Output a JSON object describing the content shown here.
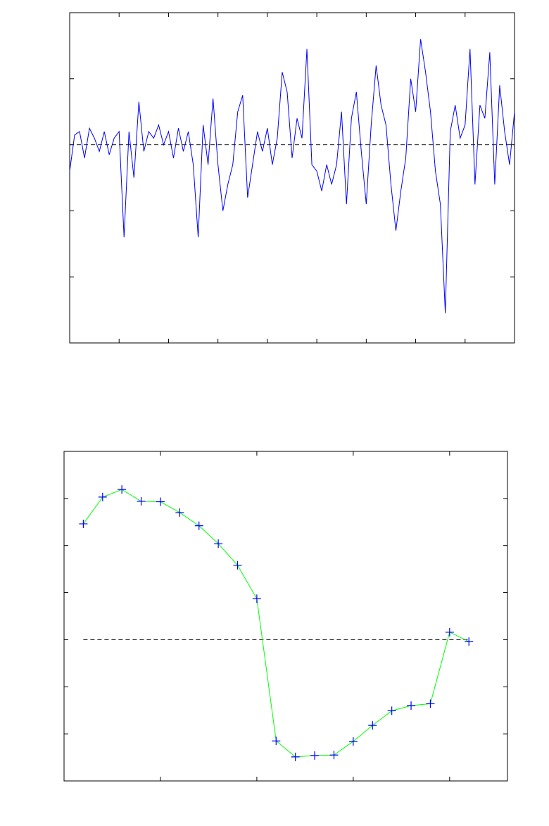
{
  "chart_data": [
    {
      "type": "line",
      "x": [
        0,
        10,
        20,
        30,
        40,
        50,
        60,
        70,
        80,
        90,
        100,
        110,
        120,
        130,
        140,
        150,
        160,
        170,
        180,
        190,
        200,
        210,
        220,
        230,
        240,
        250,
        260,
        270,
        280,
        290,
        300,
        310,
        320,
        330,
        340,
        350,
        360,
        370,
        380,
        390,
        400,
        410,
        420,
        430,
        440,
        450,
        460,
        470,
        480,
        490,
        500,
        510,
        520,
        530,
        540,
        550,
        560,
        570,
        580,
        590,
        600,
        610,
        620,
        630,
        640,
        650,
        660,
        670,
        680,
        690,
        700,
        710,
        720,
        730,
        740,
        750,
        760,
        770,
        780,
        790,
        800,
        810,
        820,
        830,
        840,
        850,
        860,
        870,
        880,
        890,
        900
      ],
      "series": [
        {
          "color": "#0000ff",
          "values": [
            -0.4,
            0.15,
            0.2,
            -0.2,
            0.25,
            0.1,
            -0.1,
            0.2,
            -0.15,
            0.1,
            0.2,
            -1.4,
            0.2,
            -0.5,
            0.65,
            -0.1,
            0.2,
            0.1,
            0.3,
            0.0,
            0.2,
            -0.2,
            0.25,
            -0.1,
            0.2,
            -0.3,
            -1.4,
            0.3,
            -0.3,
            0.7,
            -0.3,
            -1.0,
            -0.6,
            -0.3,
            0.5,
            0.75,
            -0.8,
            -0.3,
            0.2,
            -0.1,
            0.25,
            -0.3,
            0.1,
            1.1,
            0.8,
            -0.2,
            0.4,
            0.1,
            1.45,
            -0.3,
            -0.4,
            -0.7,
            -0.3,
            -0.6,
            -0.3,
            0.5,
            -0.9,
            0.4,
            0.8,
            -0.1,
            -0.9,
            0.3,
            1.2,
            0.6,
            0.3,
            -0.6,
            -1.3,
            -0.7,
            -0.2,
            1.0,
            0.5,
            1.6,
            1.1,
            0.5,
            -0.4,
            -0.9,
            -2.55,
            0.2,
            0.6,
            0.1,
            0.3,
            1.45,
            -0.6,
            0.6,
            0.4,
            1.4,
            -0.6,
            0.9,
            0.2,
            -0.3,
            0.5
          ]
        }
      ],
      "hline": 0,
      "xlim": [
        0,
        900
      ],
      "xticks": [
        100,
        200,
        300,
        400,
        500,
        600,
        700,
        800
      ],
      "ylim": [
        -3,
        2
      ],
      "yticks": [
        -2,
        -1,
        0,
        1
      ]
    },
    {
      "type": "line",
      "x": [
        1,
        2,
        3,
        4,
        5,
        6,
        7,
        8,
        9,
        10,
        11,
        12,
        13,
        14,
        15,
        16,
        17,
        18,
        19,
        20,
        21
      ],
      "series": [
        {
          "color": "#00ff00",
          "marker_color": "#0000ff",
          "values": [
            2.46,
            3.03,
            3.19,
            2.94,
            2.93,
            2.7,
            2.42,
            2.04,
            1.58,
            0.87,
            -2.15,
            -2.49,
            -2.46,
            -2.45,
            -2.16,
            -1.82,
            -1.51,
            -1.4,
            -1.36,
            0.16,
            -0.04
          ]
        }
      ],
      "hline": 0,
      "xlim": [
        0,
        23
      ],
      "xticks": [
        5,
        10,
        15,
        20
      ],
      "ylim": [
        -3,
        4
      ],
      "yticks": [
        -2,
        -1,
        0,
        1,
        2,
        3
      ]
    }
  ]
}
